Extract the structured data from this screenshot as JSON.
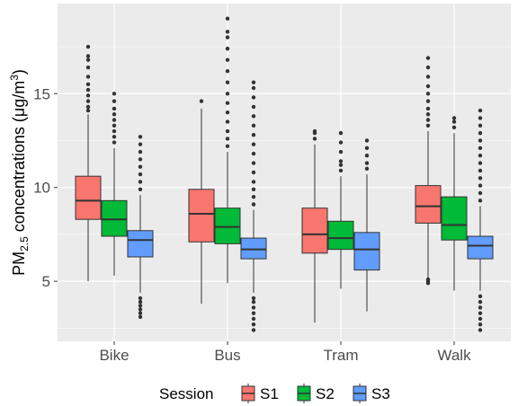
{
  "chart_data": {
    "type": "boxplot",
    "ylabel_main": "PM",
    "ylabel_sub": "2.5",
    "ylabel_rest": " concentrations (μg/m",
    "ylabel_sup": "3",
    "ylabel_end": ")",
    "xlabel": "",
    "ylim": [
      1.8,
      19.8
    ],
    "yticks": [
      5,
      10,
      15
    ],
    "grid": true,
    "legend_position": "bottom",
    "legend_title": "Session",
    "categories": [
      "Bike",
      "Bus",
      "Tram",
      "Walk"
    ],
    "series": [
      {
        "name": "S1",
        "color": "#f8766d",
        "boxes": [
          {
            "min": 5.0,
            "q1": 8.3,
            "median": 9.3,
            "q3": 10.6,
            "max": 13.9,
            "outliers": [
              14.1,
              14.3,
              14.6,
              14.9,
              15.2,
              15.5,
              15.9,
              16.4,
              16.8,
              17.0,
              17.5
            ]
          },
          {
            "min": 3.8,
            "q1": 7.1,
            "median": 8.6,
            "q3": 9.9,
            "max": 14.2,
            "outliers": [
              14.6
            ]
          },
          {
            "min": 2.8,
            "q1": 6.5,
            "median": 7.5,
            "q3": 8.9,
            "max": 12.3,
            "outliers": [
              12.6,
              12.9,
              13.0
            ]
          },
          {
            "min": 5.2,
            "q1": 8.1,
            "median": 9.0,
            "q3": 10.1,
            "max": 13.0,
            "outliers": [
              4.9,
              5.0,
              5.1,
              13.3,
              13.6,
              13.9,
              14.2,
              14.6,
              15.0,
              15.4,
              15.9,
              16.4,
              16.9
            ]
          }
        ]
      },
      {
        "name": "S2",
        "color": "#00ba38",
        "boxes": [
          {
            "min": 5.3,
            "q1": 7.4,
            "median": 8.3,
            "q3": 9.3,
            "max": 12.1,
            "outliers": [
              12.4,
              12.7,
              13.0,
              13.3,
              13.6,
              13.9,
              14.2,
              14.6,
              15.0
            ]
          },
          {
            "min": 4.9,
            "q1": 7.0,
            "median": 7.9,
            "q3": 8.9,
            "max": 11.9,
            "outliers": [
              12.2,
              12.6,
              13.0,
              13.5,
              14.0,
              14.5,
              15.0,
              15.6,
              16.2,
              16.8,
              17.4,
              18.0,
              18.3,
              19.0
            ]
          },
          {
            "min": 4.6,
            "q1": 6.7,
            "median": 7.3,
            "q3": 8.2,
            "max": 10.6,
            "outliers": [
              10.9,
              11.2,
              11.4,
              11.9,
              12.4,
              12.9
            ]
          },
          {
            "min": 4.5,
            "q1": 7.2,
            "median": 8.0,
            "q3": 9.5,
            "max": 12.9,
            "outliers": [
              13.2,
              13.5,
              13.7
            ]
          }
        ]
      },
      {
        "name": "S3",
        "color": "#619cff",
        "boxes": [
          {
            "min": 4.4,
            "q1": 6.3,
            "median": 7.2,
            "q3": 7.7,
            "max": 9.6,
            "outliers": [
              3.1,
              3.3,
              3.5,
              3.7,
              3.9,
              4.1,
              9.9,
              10.3,
              10.7,
              11.1,
              11.5,
              11.9,
              12.3,
              12.7
            ]
          },
          {
            "min": 4.4,
            "q1": 6.2,
            "median": 6.7,
            "q3": 7.3,
            "max": 8.8,
            "outliers": [
              2.4,
              2.7,
              3.0,
              3.3,
              3.6,
              3.9,
              4.1,
              9.1,
              9.5,
              9.9,
              10.3,
              10.8,
              11.3,
              11.8,
              12.3,
              12.8,
              13.3,
              13.8,
              14.3,
              14.8,
              15.3,
              15.6
            ]
          },
          {
            "min": 3.4,
            "q1": 5.6,
            "median": 6.7,
            "q3": 7.6,
            "max": 10.7,
            "outliers": [
              11.0,
              11.3,
              11.7,
              12.1,
              12.5
            ]
          },
          {
            "min": 4.5,
            "q1": 6.2,
            "median": 6.9,
            "q3": 7.4,
            "max": 9.0,
            "outliers": [
              2.4,
              2.7,
              3.0,
              3.3,
              3.6,
              3.9,
              4.2,
              9.3,
              9.7,
              10.1,
              10.5,
              10.9,
              11.3,
              11.7,
              12.1,
              12.5,
              12.9,
              13.3,
              13.7,
              14.1
            ]
          }
        ]
      }
    ]
  }
}
